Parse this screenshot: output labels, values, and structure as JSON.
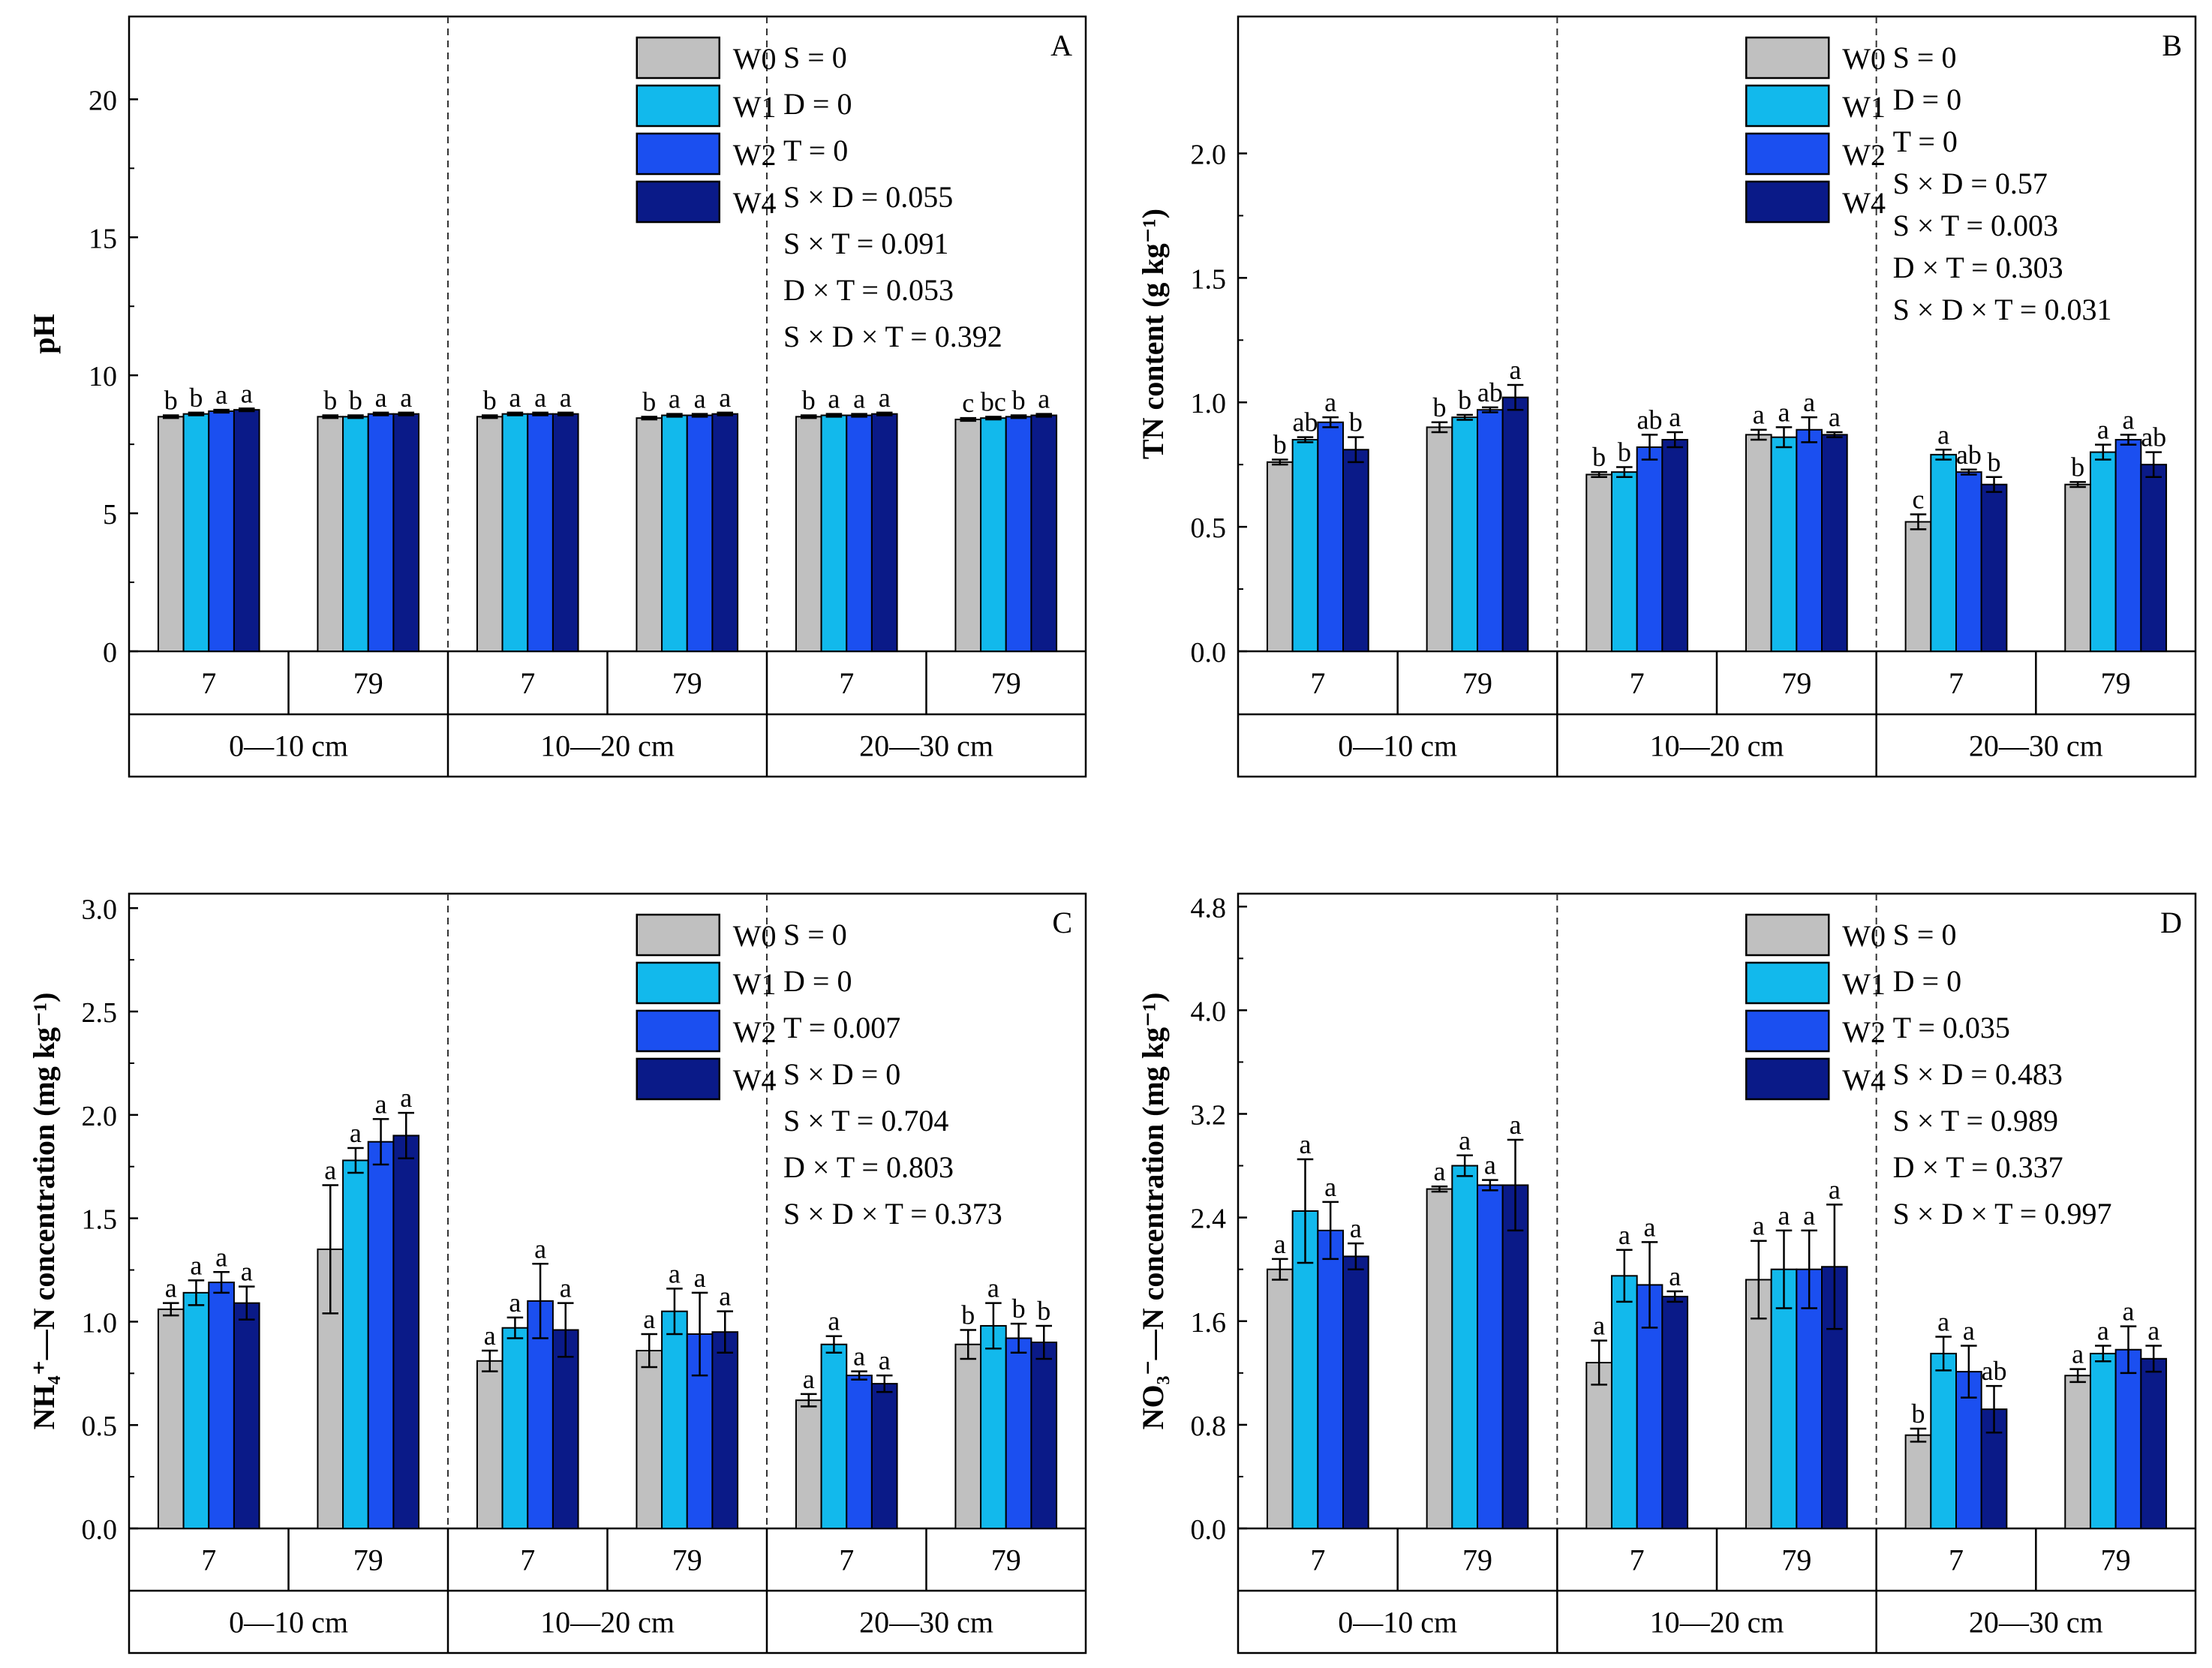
{
  "colors": {
    "W0": "#c0c0c0",
    "W1": "#12b9ec",
    "W2": "#1b4ff0",
    "W4": "#0a1a88"
  },
  "chart_data": [
    {
      "panel": "A",
      "type": "bar",
      "ylabel": "pH",
      "yticks": [
        "0",
        "5",
        "10",
        "15",
        "20"
      ],
      "ylim": [
        0,
        23
      ],
      "depths": [
        "0—10 cm",
        "10—20 cm",
        "20—30 cm"
      ],
      "times": [
        "7",
        "79"
      ],
      "legend": [
        "W0",
        "W1",
        "W2",
        "W4"
      ],
      "stats": [
        "S = 0",
        "D = 0",
        "T = 0",
        "S × D = 0.055",
        "S × T = 0.091",
        "D × T = 0.053",
        "S × D × T = 0.392"
      ],
      "groups": [
        {
          "values": [
            8.5,
            8.6,
            8.7,
            8.75
          ],
          "errors": [
            0.05,
            0.05,
            0.05,
            0.05
          ],
          "letters": [
            "b",
            "b",
            "a",
            "a"
          ]
        },
        {
          "values": [
            8.5,
            8.5,
            8.6,
            8.6
          ],
          "errors": [
            0.05,
            0.05,
            0.05,
            0.05
          ],
          "letters": [
            "b",
            "b",
            "a",
            "a"
          ]
        },
        {
          "values": [
            8.5,
            8.6,
            8.6,
            8.6
          ],
          "errors": [
            0.05,
            0.05,
            0.05,
            0.05
          ],
          "letters": [
            "b",
            "a",
            "a",
            "a"
          ]
        },
        {
          "values": [
            8.45,
            8.55,
            8.55,
            8.6
          ],
          "errors": [
            0.05,
            0.05,
            0.05,
            0.05
          ],
          "letters": [
            "b",
            "a",
            "a",
            "a"
          ]
        },
        {
          "values": [
            8.5,
            8.55,
            8.55,
            8.6
          ],
          "errors": [
            0.05,
            0.05,
            0.05,
            0.05
          ],
          "letters": [
            "b",
            "a",
            "a",
            "a"
          ]
        },
        {
          "values": [
            8.4,
            8.45,
            8.5,
            8.55
          ],
          "errors": [
            0.05,
            0.05,
            0.05,
            0.05
          ],
          "letters": [
            "c",
            "bc",
            "b",
            "a"
          ]
        }
      ]
    },
    {
      "panel": "B",
      "type": "bar",
      "ylabel": "TN content (g kg⁻¹)",
      "yticks": [
        "0.0",
        "0.5",
        "1.0",
        "1.5",
        "2.0"
      ],
      "ylim": [
        0,
        2.55
      ],
      "depths": [
        "0—10 cm",
        "10—20 cm",
        "20—30 cm"
      ],
      "times": [
        "7",
        "79"
      ],
      "legend": [
        "W0",
        "W1",
        "W2",
        "W4"
      ],
      "stats": [
        "S = 0",
        "D = 0",
        "T = 0",
        "S × D = 0.57",
        "S × T = 0.003",
        "D × T = 0.303",
        "S × D × T = 0.031"
      ],
      "groups": [
        {
          "values": [
            0.76,
            0.85,
            0.92,
            0.81
          ],
          "errors": [
            0.01,
            0.01,
            0.02,
            0.05
          ],
          "letters": [
            "b",
            "ab",
            "a",
            "b"
          ]
        },
        {
          "values": [
            0.9,
            0.94,
            0.97,
            1.02
          ],
          "errors": [
            0.02,
            0.01,
            0.01,
            0.05
          ],
          "letters": [
            "b",
            "b",
            "ab",
            "a"
          ]
        },
        {
          "values": [
            0.71,
            0.72,
            0.82,
            0.85
          ],
          "errors": [
            0.01,
            0.02,
            0.05,
            0.03
          ],
          "letters": [
            "b",
            "b",
            "ab",
            "a"
          ]
        },
        {
          "values": [
            0.87,
            0.86,
            0.89,
            0.87
          ],
          "errors": [
            0.02,
            0.04,
            0.05,
            0.01
          ],
          "letters": [
            "a",
            "a",
            "a",
            "a"
          ]
        },
        {
          "values": [
            0.52,
            0.79,
            0.72,
            0.67
          ],
          "errors": [
            0.03,
            0.02,
            0.01,
            0.03
          ],
          "letters": [
            "c",
            "a",
            "ab",
            "b"
          ]
        },
        {
          "values": [
            0.67,
            0.8,
            0.85,
            0.75
          ],
          "errors": [
            0.01,
            0.03,
            0.02,
            0.05
          ],
          "letters": [
            "b",
            "a",
            "a",
            "ab"
          ]
        }
      ]
    },
    {
      "panel": "C",
      "type": "bar",
      "ylabel": "NH₄⁺—N concentration (mg kg⁻¹)",
      "yticks": [
        "0.0",
        "0.5",
        "1.0",
        "1.5",
        "2.0",
        "2.5",
        "3.0"
      ],
      "ylim": [
        0,
        3.07
      ],
      "depths": [
        "0—10 cm",
        "10—20 cm",
        "20—30 cm"
      ],
      "times": [
        "7",
        "79"
      ],
      "legend": [
        "W0",
        "W1",
        "W2",
        "W4"
      ],
      "stats": [
        "S = 0",
        "D = 0",
        "T = 0.007",
        "S × D = 0",
        "S × T = 0.704",
        "D × T = 0.803",
        "S × D × T = 0.373"
      ],
      "groups": [
        {
          "values": [
            1.06,
            1.14,
            1.19,
            1.09
          ],
          "errors": [
            0.03,
            0.06,
            0.05,
            0.08
          ],
          "letters": [
            "a",
            "a",
            "a",
            "a"
          ]
        },
        {
          "values": [
            1.35,
            1.78,
            1.87,
            1.9
          ],
          "errors": [
            0.31,
            0.06,
            0.11,
            0.11
          ],
          "letters": [
            "a",
            "a",
            "a",
            "a"
          ]
        },
        {
          "values": [
            0.81,
            0.97,
            1.1,
            0.96
          ],
          "errors": [
            0.05,
            0.05,
            0.18,
            0.13
          ],
          "letters": [
            "a",
            "a",
            "a",
            "a"
          ]
        },
        {
          "values": [
            0.86,
            1.05,
            0.94,
            0.95
          ],
          "errors": [
            0.08,
            0.11,
            0.2,
            0.1
          ],
          "letters": [
            "a",
            "a",
            "a",
            "a"
          ]
        },
        {
          "values": [
            0.62,
            0.89,
            0.74,
            0.7
          ],
          "errors": [
            0.03,
            0.04,
            0.02,
            0.04
          ],
          "letters": [
            "a",
            "a",
            "a",
            "a"
          ]
        },
        {
          "values": [
            0.89,
            0.98,
            0.92,
            0.9
          ],
          "errors": [
            0.07,
            0.11,
            0.07,
            0.08
          ],
          "letters": [
            "b",
            "a",
            "b",
            "b"
          ]
        }
      ]
    },
    {
      "panel": "D",
      "type": "bar",
      "ylabel": "NO₃⁻—N concentration (mg kg⁻¹)",
      "yticks": [
        "0.0",
        "0.8",
        "1.6",
        "2.4",
        "3.2",
        "4.0",
        "4.8"
      ],
      "ylim": [
        0,
        4.9
      ],
      "depths": [
        "0—10 cm",
        "10—20 cm",
        "20—30 cm"
      ],
      "times": [
        "7",
        "79"
      ],
      "legend": [
        "W0",
        "W1",
        "W2",
        "W4"
      ],
      "stats": [
        "S = 0",
        "D = 0",
        "T = 0.035",
        "S × D = 0.483",
        "S × T = 0.989",
        "D × T = 0.337",
        "S × D × T = 0.997"
      ],
      "groups": [
        {
          "values": [
            2.0,
            2.45,
            2.3,
            2.1
          ],
          "errors": [
            0.08,
            0.4,
            0.22,
            0.1
          ],
          "letters": [
            "a",
            "a",
            "a",
            "a"
          ]
        },
        {
          "values": [
            2.62,
            2.8,
            2.65,
            2.65
          ],
          "errors": [
            0.02,
            0.08,
            0.04,
            0.35
          ],
          "letters": [
            "a",
            "a",
            "a",
            "a"
          ]
        },
        {
          "values": [
            1.28,
            1.95,
            1.88,
            1.79
          ],
          "errors": [
            0.17,
            0.2,
            0.33,
            0.04
          ],
          "letters": [
            "a",
            "a",
            "a",
            "a"
          ]
        },
        {
          "values": [
            1.92,
            2.0,
            2.0,
            2.02
          ],
          "errors": [
            0.3,
            0.3,
            0.3,
            0.48
          ],
          "letters": [
            "a",
            "a",
            "a",
            "a"
          ]
        },
        {
          "values": [
            0.72,
            1.35,
            1.21,
            0.92
          ],
          "errors": [
            0.05,
            0.13,
            0.2,
            0.18
          ],
          "letters": [
            "b",
            "a",
            "a",
            "ab"
          ]
        },
        {
          "values": [
            1.18,
            1.35,
            1.38,
            1.31
          ],
          "errors": [
            0.05,
            0.06,
            0.18,
            0.1
          ],
          "letters": [
            "a",
            "a",
            "a",
            "a"
          ]
        }
      ]
    }
  ]
}
